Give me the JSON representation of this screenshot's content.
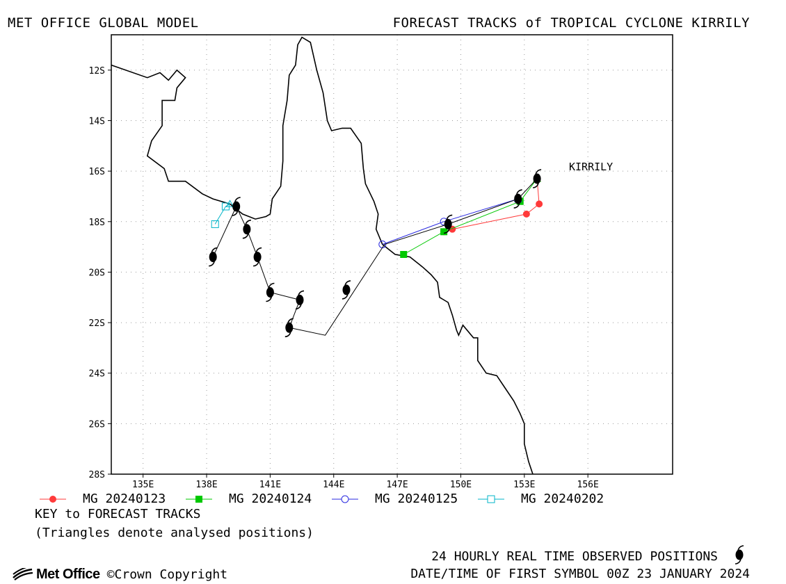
{
  "header": {
    "model": "MET OFFICE GLOBAL MODEL",
    "title": "FORECAST TRACKS of TROPICAL CYCLONE KIRRILY"
  },
  "map": {
    "storm_label": "KIRRILY",
    "lat_range": [
      -28,
      -10.6
    ],
    "lon_range": [
      133.5,
      160
    ],
    "lat_ticks": [
      "12S",
      "14S",
      "16S",
      "18S",
      "20S",
      "22S",
      "24S",
      "26S",
      "28S"
    ],
    "lon_ticks": [
      "135E",
      "138E",
      "141E",
      "144E",
      "147E",
      "150E",
      "153E",
      "156E"
    ],
    "grid": true,
    "colors": {
      "coast": "#000000",
      "observed_track": "#000000",
      "MG 20240123": "#ff3a3a",
      "MG 20240124": "#00c800",
      "MG 20240125": "#2a2ae0",
      "MG 20240202": "#00b4c8"
    }
  },
  "chart_data": {
    "type": "map-tracks",
    "observed_track": [
      [
        153.6,
        -16.3
      ],
      [
        152.7,
        -17.1
      ],
      [
        149.4,
        -18.1
      ],
      [
        146.4,
        -18.9
      ],
      [
        143.6,
        -22.5
      ],
      [
        141.9,
        -22.2
      ],
      [
        142.4,
        -21.1
      ],
      [
        141.0,
        -20.8
      ],
      [
        140.4,
        -19.4
      ],
      [
        139.9,
        -18.3
      ],
      [
        139.4,
        -17.4
      ],
      [
        138.3,
        -19.4
      ]
    ],
    "observed_symbol_positions": [
      [
        153.6,
        -16.3
      ],
      [
        152.7,
        -17.1
      ],
      [
        149.4,
        -18.1
      ],
      [
        144.6,
        -20.7
      ],
      [
        141.9,
        -22.2
      ],
      [
        142.4,
        -21.1
      ],
      [
        141.0,
        -20.8
      ],
      [
        140.4,
        -19.4
      ],
      [
        139.9,
        -18.3
      ],
      [
        139.4,
        -17.4
      ],
      [
        138.3,
        -19.4
      ]
    ],
    "forecast_tracks": [
      {
        "name": "MG 20240123",
        "marker": "filled-circle",
        "points": [
          [
            153.6,
            -16.3
          ],
          [
            153.7,
            -17.3
          ],
          [
            153.1,
            -17.7
          ],
          [
            149.6,
            -18.3
          ],
          [
            149.2,
            -18.4
          ]
        ]
      },
      {
        "name": "MG 20240124",
        "marker": "filled-square",
        "points": [
          [
            153.6,
            -16.3
          ],
          [
            152.8,
            -17.2
          ],
          [
            149.2,
            -18.4
          ],
          [
            147.3,
            -19.3
          ]
        ]
      },
      {
        "name": "MG 20240125",
        "marker": "open-circle",
        "points": [
          [
            152.7,
            -17.1
          ],
          [
            149.2,
            -18.0
          ],
          [
            146.3,
            -18.9
          ]
        ]
      },
      {
        "name": "MG 20240202",
        "marker": "open-square",
        "points": [
          [
            139.1,
            -17.3
          ],
          [
            138.9,
            -17.4
          ],
          [
            138.4,
            -18.1
          ]
        ]
      }
    ],
    "coastline": [
      [
        133.5,
        -11.8
      ],
      [
        135.2,
        -12.3
      ],
      [
        135.8,
        -12.1
      ],
      [
        136.2,
        -12.4
      ],
      [
        136.6,
        -12.0
      ],
      [
        137.0,
        -12.3
      ],
      [
        136.6,
        -12.7
      ],
      [
        136.5,
        -13.2
      ],
      [
        135.9,
        -13.2
      ],
      [
        135.9,
        -14.2
      ],
      [
        135.4,
        -14.8
      ],
      [
        135.2,
        -15.4
      ],
      [
        136.0,
        -15.9
      ],
      [
        136.2,
        -16.4
      ],
      [
        137.0,
        -16.4
      ],
      [
        137.8,
        -16.9
      ],
      [
        138.3,
        -17.1
      ],
      [
        139.1,
        -17.3
      ],
      [
        139.7,
        -17.7
      ],
      [
        140.3,
        -17.9
      ],
      [
        140.8,
        -17.8
      ],
      [
        141.0,
        -17.7
      ],
      [
        141.1,
        -17.1
      ],
      [
        141.5,
        -16.6
      ],
      [
        141.6,
        -15.6
      ],
      [
        141.6,
        -14.2
      ],
      [
        141.8,
        -13.2
      ],
      [
        141.9,
        -12.2
      ],
      [
        142.2,
        -11.8
      ],
      [
        142.3,
        -11.0
      ],
      [
        142.5,
        -10.7
      ],
      [
        142.9,
        -10.9
      ],
      [
        143.2,
        -12.0
      ],
      [
        143.5,
        -12.9
      ],
      [
        143.7,
        -14.0
      ],
      [
        143.9,
        -14.4
      ],
      [
        144.4,
        -14.3
      ],
      [
        144.8,
        -14.3
      ],
      [
        145.3,
        -14.9
      ],
      [
        145.4,
        -15.9
      ],
      [
        145.5,
        -16.5
      ],
      [
        145.9,
        -17.2
      ],
      [
        146.1,
        -17.7
      ],
      [
        146.0,
        -18.3
      ],
      [
        146.3,
        -18.9
      ],
      [
        146.9,
        -19.3
      ],
      [
        147.6,
        -19.4
      ],
      [
        148.2,
        -19.8
      ],
      [
        148.6,
        -20.1
      ],
      [
        148.9,
        -20.4
      ],
      [
        149.0,
        -21.0
      ],
      [
        149.4,
        -21.2
      ],
      [
        149.6,
        -21.7
      ],
      [
        149.8,
        -22.3
      ],
      [
        149.9,
        -22.5
      ],
      [
        150.1,
        -22.1
      ],
      [
        150.6,
        -22.6
      ],
      [
        150.8,
        -22.6
      ],
      [
        150.8,
        -23.5
      ],
      [
        151.2,
        -24.0
      ],
      [
        151.7,
        -24.1
      ],
      [
        152.1,
        -24.6
      ],
      [
        152.5,
        -25.1
      ],
      [
        152.8,
        -25.6
      ],
      [
        153.0,
        -26.0
      ],
      [
        153.0,
        -26.8
      ],
      [
        153.2,
        -27.5
      ],
      [
        153.4,
        -28.0
      ]
    ]
  },
  "legend": [
    {
      "label": "MG 20240123",
      "marker": "filled-circle",
      "color": "#ff3a3a"
    },
    {
      "label": "MG 20240124",
      "marker": "filled-square",
      "color": "#00c800"
    },
    {
      "label": "MG 20240125",
      "marker": "open-circle",
      "color": "#2a2ae0"
    },
    {
      "label": "MG 20240202",
      "marker": "open-square",
      "color": "#00b4c8"
    }
  ],
  "footer": {
    "key_title": "KEY to FORECAST TRACKS",
    "key_note": "(Triangles denote analysed positions)",
    "observed_note": "24 HOURLY REAL TIME OBSERVED POSITIONS",
    "observed_icon": "cyclone-symbol-icon",
    "datetime": "DATE/TIME OF FIRST SYMBOL 00Z 23 JANUARY 2024",
    "logo_text": "Met Office",
    "copyright": "©Crown Copyright"
  }
}
